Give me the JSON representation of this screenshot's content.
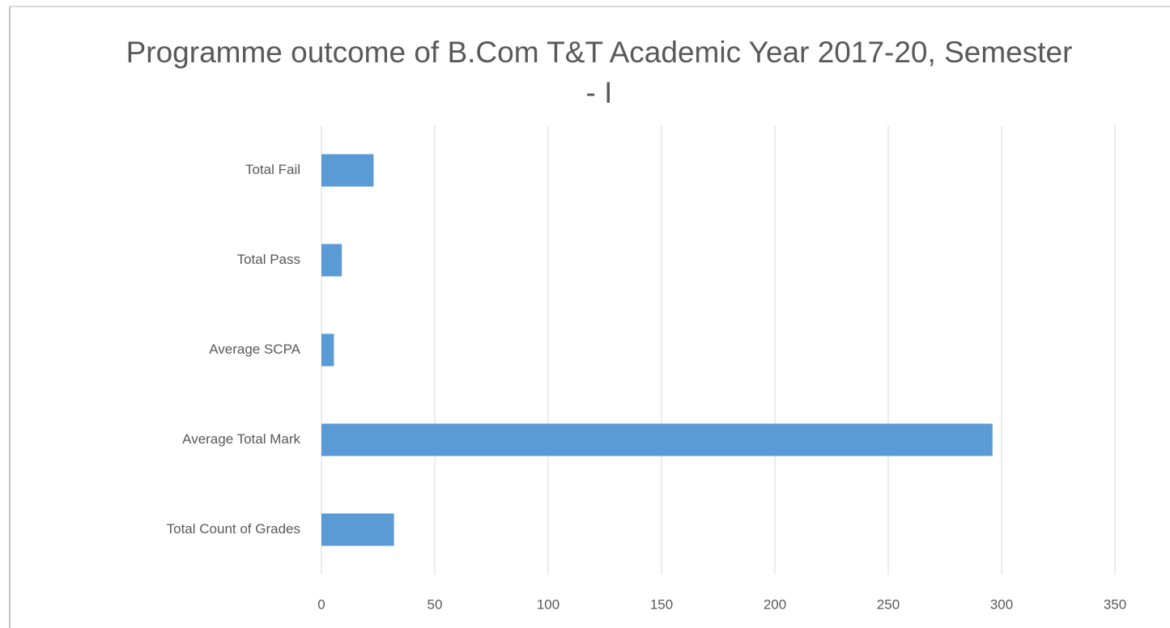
{
  "chart_data": {
    "type": "bar",
    "orientation": "horizontal",
    "title": "Programme outcome of B.Com T&T Academic Year 2017-20, Semester - I",
    "categories": [
      "Total Fail",
      "Total Pass",
      "Average SCPA",
      "Average Total Mark",
      "Total Count of Grades"
    ],
    "values": [
      23,
      9,
      5.5,
      296,
      32
    ],
    "color": "#5b9bd5",
    "xlim": [
      0,
      350
    ],
    "xticks": [
      0,
      50,
      100,
      150,
      200,
      250,
      300,
      350
    ],
    "grid": true
  }
}
